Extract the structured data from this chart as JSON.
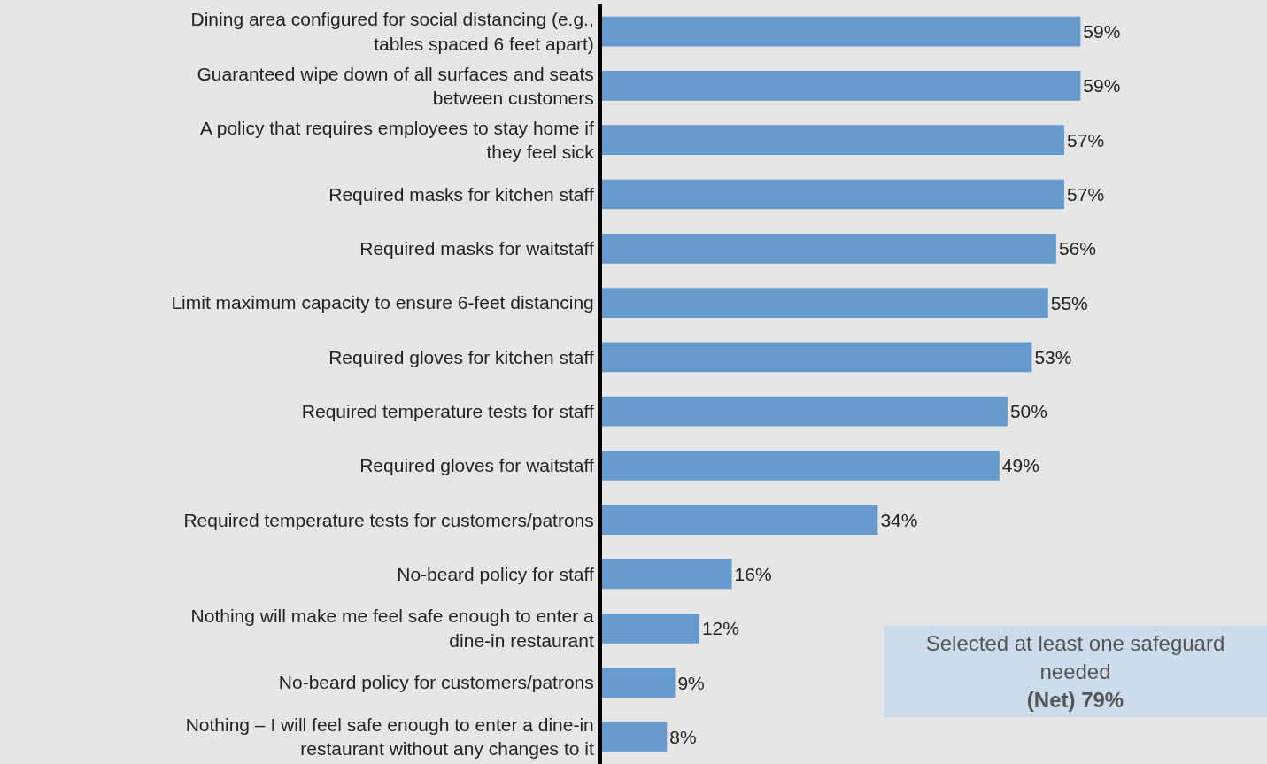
{
  "chart_data": {
    "type": "bar",
    "orientation": "horizontal",
    "categories": [
      "Dining area configured for social distancing (e.g., tables spaced 6 feet apart)",
      "Guaranteed wipe down of all surfaces and seats between customers",
      "A policy that requires employees to stay home if they feel sick",
      "Required masks for kitchen staff",
      "Required masks for waitstaff",
      "Limit maximum capacity to ensure 6-feet distancing",
      "Required gloves for kitchen staff",
      "Required temperature tests for staff",
      "Required gloves for waitstaff",
      "Required temperature tests for customers/patrons",
      "No-beard policy for staff",
      "Nothing will make me feel safe enough to enter a dine-in restaurant",
      "No-beard policy for customers/patrons",
      "Nothing – I will feel safe enough to enter a dine-in restaurant without any changes to it"
    ],
    "values": [
      59,
      59,
      57,
      57,
      56,
      55,
      53,
      50,
      49,
      34,
      16,
      12,
      9,
      8
    ],
    "value_labels": [
      "59%",
      "59%",
      "57%",
      "57%",
      "56%",
      "55%",
      "53%",
      "50%",
      "49%",
      "34%",
      "16%",
      "12%",
      "9%",
      "8%"
    ],
    "color": "#6699cc",
    "xlim": [
      0,
      82
    ],
    "tick_labels": "y",
    "legend": false,
    "annotations": [
      "Selected at least one safeguard needed",
      "(Net) 79%"
    ]
  }
}
